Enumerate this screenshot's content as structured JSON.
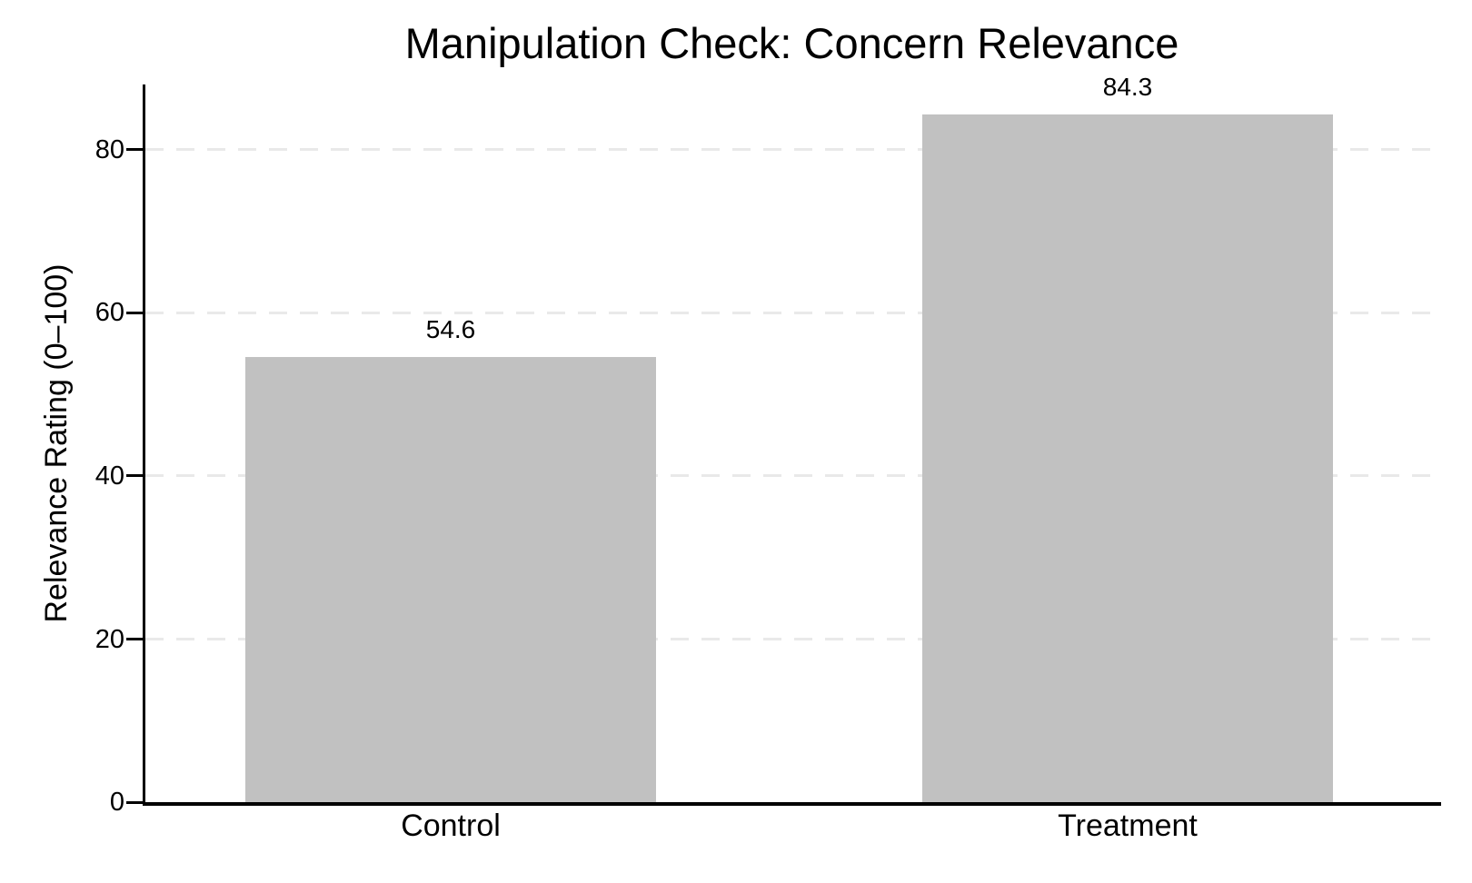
{
  "chart_data": {
    "type": "bar",
    "title": "Manipulation Check: Concern Relevance",
    "ylabel": "Relevance Rating (0–100)",
    "xlabel": "",
    "categories": [
      "Control",
      "Treatment"
    ],
    "values": [
      54.6,
      84.3
    ],
    "bar_value_labels": [
      "54.6",
      "84.3"
    ],
    "yticks": [
      0,
      20,
      40,
      60,
      80
    ],
    "ytick_labels": [
      "0",
      "20",
      "40",
      "60",
      "80"
    ],
    "ylim": [
      0,
      88
    ],
    "grid": "horizontal-dashed",
    "legend_position": "none",
    "colors": {
      "bar_fill": "#c1c1c1",
      "gridline": "#e9e9e9",
      "axis": "#000000",
      "text": "#000000",
      "background": "#ffffff"
    }
  }
}
